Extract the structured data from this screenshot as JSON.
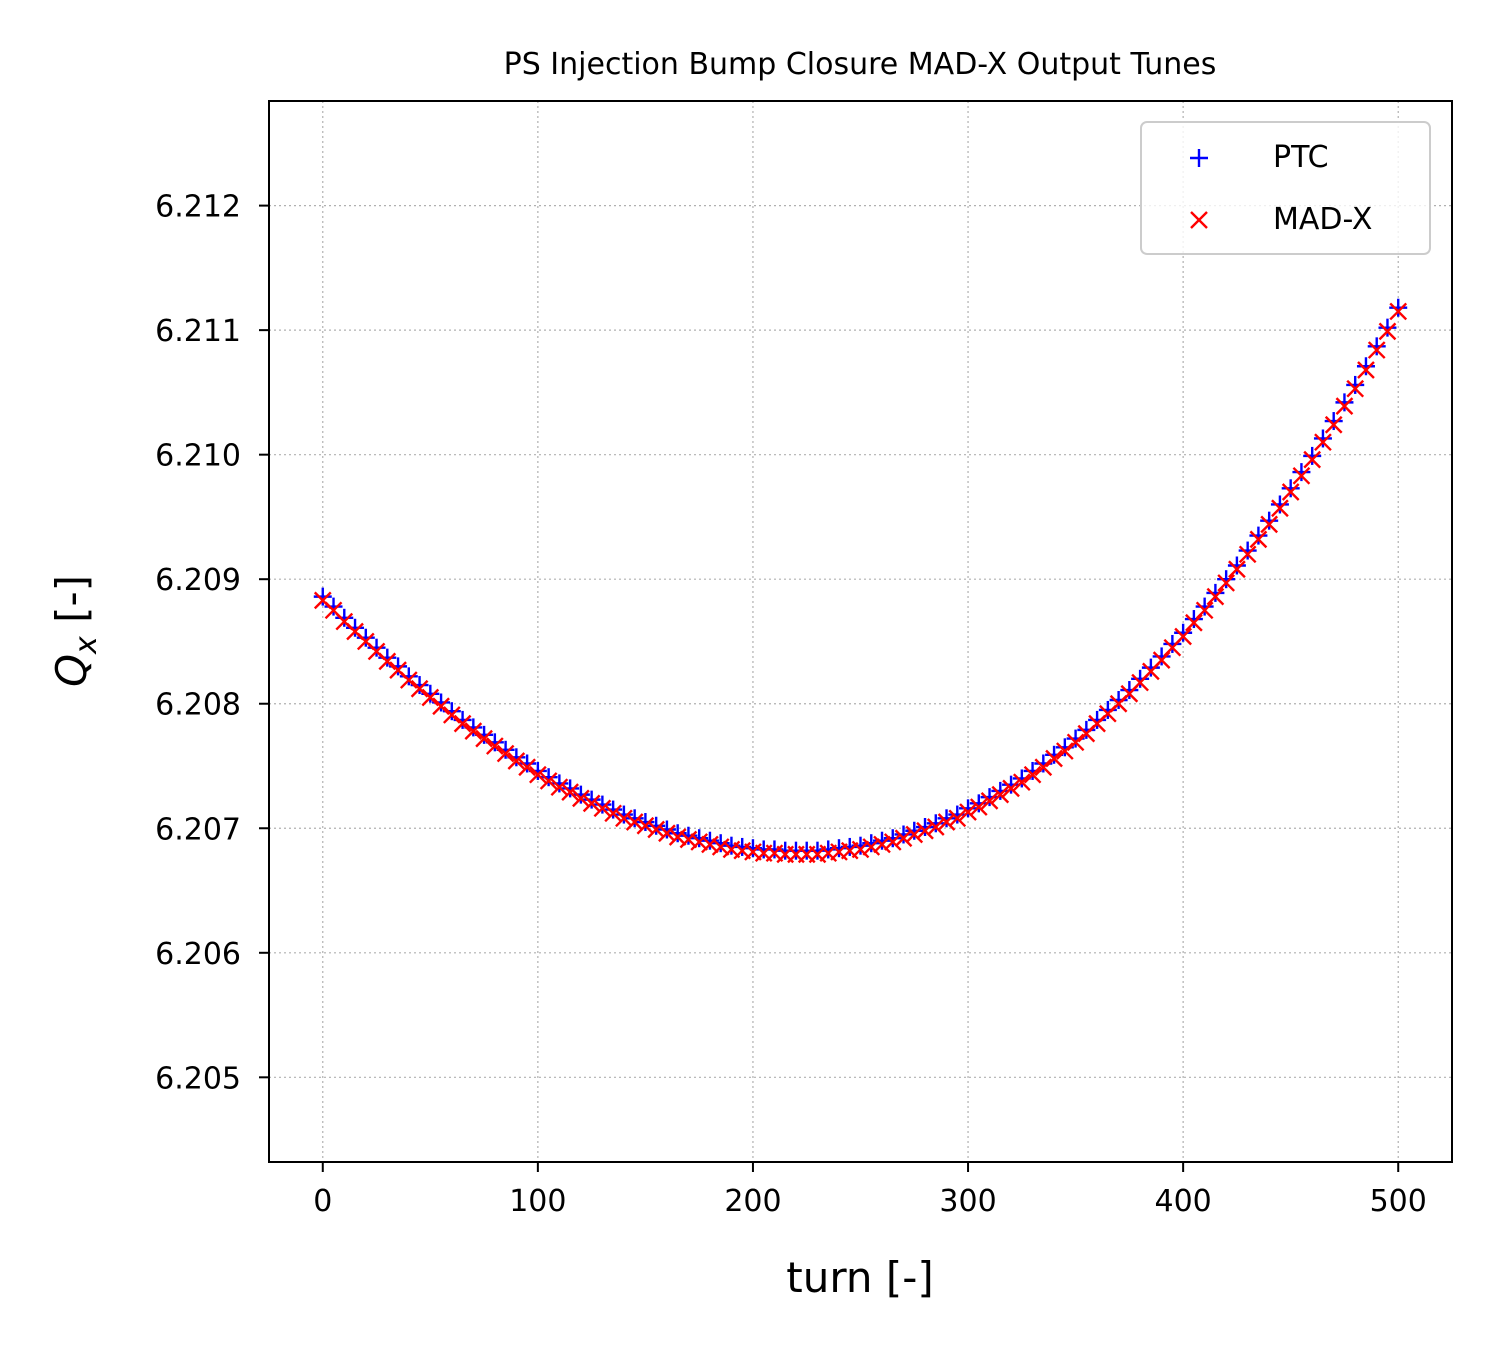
{
  "chart_data": {
    "type": "scatter",
    "title": "PS Injection Bump Closure MAD-X Output Tunes",
    "xlabel": "turn [-]",
    "ylabel_symbol": "Q",
    "ylabel_subscript": "x",
    "ylabel_unit": " [-]",
    "xlim": [
      -25,
      525
    ],
    "ylim": [
      6.20432,
      6.21284
    ],
    "xticks": [
      0,
      100,
      200,
      300,
      400,
      500
    ],
    "xtick_labels": [
      "0",
      "100",
      "200",
      "300",
      "400",
      "500"
    ],
    "yticks": [
      6.205,
      6.206,
      6.207,
      6.208,
      6.209,
      6.21,
      6.211,
      6.212
    ],
    "ytick_labels": [
      "6.205",
      "6.206",
      "6.207",
      "6.208",
      "6.209",
      "6.210",
      "6.211",
      "6.212"
    ],
    "grid": true,
    "legend_position": "top-right",
    "series": [
      {
        "name": "PTC",
        "marker": "+",
        "color": "#0000ff",
        "x": [
          0,
          5,
          10,
          15,
          20,
          25,
          30,
          35,
          40,
          45,
          50,
          55,
          60,
          65,
          70,
          75,
          80,
          85,
          90,
          95,
          100,
          105,
          110,
          115,
          120,
          125,
          130,
          135,
          140,
          145,
          150,
          155,
          160,
          165,
          170,
          175,
          180,
          185,
          190,
          195,
          200,
          205,
          210,
          215,
          220,
          225,
          230,
          235,
          240,
          245,
          250,
          255,
          260,
          265,
          270,
          275,
          280,
          285,
          290,
          295,
          300,
          305,
          310,
          315,
          320,
          325,
          330,
          335,
          340,
          345,
          350,
          355,
          360,
          365,
          370,
          375,
          380,
          385,
          390,
          395,
          400,
          405,
          410,
          415,
          420,
          425,
          430,
          435,
          440,
          445,
          450,
          455,
          460,
          465,
          470,
          475,
          480,
          485,
          490,
          495,
          500
        ],
        "y": [
          6.20886,
          6.20878,
          6.20869,
          6.20861,
          6.20853,
          6.20845,
          6.20837,
          6.2083,
          6.20822,
          6.20815,
          6.20808,
          6.20801,
          6.20794,
          6.20787,
          6.20781,
          6.20775,
          6.20769,
          6.20763,
          6.20757,
          6.20752,
          6.20746,
          6.20741,
          6.20736,
          6.20732,
          6.20727,
          6.20723,
          6.20719,
          6.20715,
          6.20711,
          6.20708,
          6.20705,
          6.20702,
          6.20699,
          6.20696,
          6.20694,
          6.20692,
          6.2069,
          6.20688,
          6.20686,
          6.20685,
          6.20684,
          6.20683,
          6.20683,
          6.20682,
          6.20682,
          6.20682,
          6.20682,
          6.20683,
          6.20684,
          6.20685,
          6.20686,
          6.20688,
          6.2069,
          6.20692,
          6.20695,
          6.20698,
          6.20701,
          6.20704,
          6.20708,
          6.20711,
          6.20716,
          6.2072,
          6.20725,
          6.2073,
          6.20735,
          6.2074,
          6.20746,
          6.20752,
          6.20759,
          6.20765,
          6.20772,
          6.20779,
          6.20787,
          6.20795,
          6.20803,
          6.20811,
          6.2082,
          6.20829,
          6.20838,
          6.20848,
          6.20857,
          6.20868,
          6.20878,
          6.20889,
          6.209,
          6.20911,
          6.20923,
          6.20935,
          6.20947,
          6.2096,
          6.20973,
          6.20986,
          6.20999,
          6.21013,
          6.21027,
          6.21042,
          6.21056,
          6.21071,
          6.21087,
          6.21102,
          6.21118
        ]
      },
      {
        "name": "MAD-X",
        "marker": "x",
        "color": "#ff0000",
        "x": [
          0,
          5,
          10,
          15,
          20,
          25,
          30,
          35,
          40,
          45,
          50,
          55,
          60,
          65,
          70,
          75,
          80,
          85,
          90,
          95,
          100,
          105,
          110,
          115,
          120,
          125,
          130,
          135,
          140,
          145,
          150,
          155,
          160,
          165,
          170,
          175,
          180,
          185,
          190,
          195,
          200,
          205,
          210,
          215,
          220,
          225,
          230,
          235,
          240,
          245,
          250,
          255,
          260,
          265,
          270,
          275,
          280,
          285,
          290,
          295,
          300,
          305,
          310,
          315,
          320,
          325,
          330,
          335,
          340,
          345,
          350,
          355,
          360,
          365,
          370,
          375,
          380,
          385,
          390,
          395,
          400,
          405,
          410,
          415,
          420,
          425,
          430,
          435,
          440,
          445,
          450,
          455,
          460,
          465,
          470,
          475,
          480,
          485,
          490,
          495,
          500
        ],
        "y": [
          6.20883,
          6.20875,
          6.20866,
          6.20858,
          6.2085,
          6.20842,
          6.20834,
          6.20827,
          6.20819,
          6.20812,
          6.20805,
          6.20798,
          6.20791,
          6.20784,
          6.20778,
          6.20772,
          6.20766,
          6.2076,
          6.20754,
          6.20749,
          6.20743,
          6.20738,
          6.20733,
          6.20729,
          6.20724,
          6.2072,
          6.20716,
          6.20712,
          6.20708,
          6.20705,
          6.20702,
          6.20699,
          6.20696,
          6.20693,
          6.20691,
          6.20689,
          6.20687,
          6.20685,
          6.20683,
          6.20682,
          6.20681,
          6.2068,
          6.2068,
          6.20679,
          6.20679,
          6.20679,
          6.20679,
          6.2068,
          6.20681,
          6.20682,
          6.20683,
          6.20685,
          6.20687,
          6.20689,
          6.20692,
          6.20695,
          6.20698,
          6.20701,
          6.20705,
          6.20708,
          6.20713,
          6.20717,
          6.20722,
          6.20727,
          6.20732,
          6.20737,
          6.20743,
          6.20749,
          6.20756,
          6.20762,
          6.20769,
          6.20776,
          6.20784,
          6.20792,
          6.208,
          6.20808,
          6.20817,
          6.20826,
          6.20835,
          6.20845,
          6.20854,
          6.20865,
          6.20875,
          6.20886,
          6.20897,
          6.20908,
          6.2092,
          6.20932,
          6.20944,
          6.20957,
          6.2097,
          6.20983,
          6.20996,
          6.2101,
          6.21024,
          6.21039,
          6.21053,
          6.21068,
          6.21084,
          6.21099,
          6.21115
        ]
      }
    ]
  }
}
